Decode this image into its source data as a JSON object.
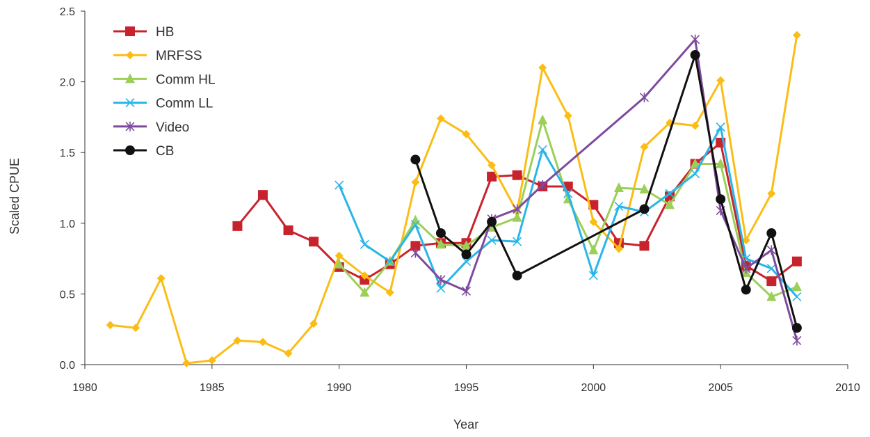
{
  "chart_data": {
    "type": "line",
    "title": "",
    "xlabel": "Year",
    "ylabel": "Scaled CPUE",
    "xlim": [
      1980,
      2010
    ],
    "ylim": [
      0,
      2.5
    ],
    "x_ticks": [
      "1980",
      "1985",
      "1990",
      "1995",
      "2000",
      "2005",
      "2010"
    ],
    "y_ticks": [
      "0.0",
      "0.5",
      "1.0",
      "1.5",
      "2.0",
      "2.5"
    ],
    "grid": false,
    "legend_position": "top-left",
    "series": [
      {
        "name": "HB",
        "color": "#c8232c",
        "marker": "square",
        "points": [
          [
            1986,
            0.98
          ],
          [
            1987,
            1.2
          ],
          [
            1988,
            0.95
          ],
          [
            1989,
            0.87
          ],
          [
            1990,
            0.69
          ],
          [
            1991,
            0.6
          ],
          [
            1992,
            0.71
          ],
          [
            1993,
            0.84
          ],
          [
            1994,
            0.86
          ],
          [
            1995,
            0.86
          ],
          [
            1996,
            1.33
          ],
          [
            1997,
            1.34
          ],
          [
            1998,
            1.26
          ],
          [
            1999,
            1.26
          ],
          [
            2000,
            1.13
          ],
          [
            2001,
            0.86
          ],
          [
            2002,
            0.84
          ],
          [
            2003,
            1.19
          ],
          [
            2004,
            1.42
          ],
          [
            2005,
            1.57
          ],
          [
            2006,
            0.7
          ],
          [
            2007,
            0.59
          ],
          [
            2008,
            0.73
          ]
        ]
      },
      {
        "name": "MRFSS",
        "color": "#fbbd15",
        "marker": "diamond",
        "points": [
          [
            1981,
            0.28
          ],
          [
            1982,
            0.26
          ],
          [
            1983,
            0.61
          ],
          [
            1984,
            0.01
          ],
          [
            1985,
            0.03
          ],
          [
            1986,
            0.17
          ],
          [
            1987,
            0.16
          ],
          [
            1988,
            0.08
          ],
          [
            1989,
            0.29
          ],
          [
            1990,
            0.77
          ],
          [
            1991,
            0.63
          ],
          [
            1992,
            0.51
          ],
          [
            1993,
            1.29
          ],
          [
            1994,
            1.74
          ],
          [
            1995,
            1.63
          ],
          [
            1996,
            1.41
          ],
          [
            1997,
            1.08
          ],
          [
            1998,
            2.1
          ],
          [
            1999,
            1.76
          ],
          [
            2000,
            1.01
          ],
          [
            2001,
            0.82
          ],
          [
            2002,
            1.54
          ],
          [
            2003,
            1.71
          ],
          [
            2004,
            1.69
          ],
          [
            2005,
            2.01
          ],
          [
            2006,
            0.88
          ],
          [
            2007,
            1.21
          ],
          [
            2008,
            2.33
          ]
        ]
      },
      {
        "name": "Comm HL",
        "color": "#9ccf57",
        "marker": "triangle",
        "points": [
          [
            1990,
            0.71
          ],
          [
            1991,
            0.51
          ],
          [
            1992,
            0.73
          ],
          [
            1993,
            1.02
          ],
          [
            1994,
            0.85
          ],
          [
            1995,
            0.84
          ],
          [
            1996,
            0.97
          ],
          [
            1997,
            1.04
          ],
          [
            1998,
            1.73
          ],
          [
            1999,
            1.17
          ],
          [
            2000,
            0.81
          ],
          [
            2001,
            1.25
          ],
          [
            2002,
            1.24
          ],
          [
            2003,
            1.13
          ],
          [
            2004,
            1.42
          ],
          [
            2005,
            1.42
          ],
          [
            2006,
            0.65
          ],
          [
            2007,
            0.48
          ],
          [
            2008,
            0.55
          ]
        ]
      },
      {
        "name": "Comm LL",
        "color": "#29b5e8",
        "marker": "x",
        "points": [
          [
            1990,
            1.27
          ],
          [
            1991,
            0.85
          ],
          [
            1992,
            0.73
          ],
          [
            1993,
            0.99
          ],
          [
            1994,
            0.54
          ],
          [
            1995,
            0.73
          ],
          [
            1996,
            0.88
          ],
          [
            1997,
            0.87
          ],
          [
            1998,
            1.52
          ],
          [
            1999,
            1.21
          ],
          [
            2000,
            0.63
          ],
          [
            2001,
            1.12
          ],
          [
            2002,
            1.08
          ],
          [
            2003,
            1.21
          ],
          [
            2004,
            1.35
          ],
          [
            2005,
            1.68
          ],
          [
            2006,
            0.75
          ],
          [
            2007,
            0.68
          ],
          [
            2008,
            0.48
          ]
        ]
      },
      {
        "name": "Video",
        "color": "#7e4a9e",
        "marker": "asterisk",
        "points": [
          [
            1993,
            0.79
          ],
          [
            1994,
            0.6
          ],
          [
            1995,
            0.52
          ],
          [
            1996,
            1.03
          ],
          [
            1997,
            1.1
          ],
          [
            1998,
            1.27
          ],
          [
            2002,
            1.89
          ],
          [
            2004,
            2.3
          ],
          [
            2005,
            1.09
          ],
          [
            2006,
            0.68
          ],
          [
            2007,
            0.81
          ],
          [
            2008,
            0.17
          ]
        ]
      },
      {
        "name": "CB",
        "color": "#111111",
        "marker": "circle",
        "points": [
          [
            1993,
            1.45
          ],
          [
            1994,
            0.93
          ],
          [
            1995,
            0.78
          ],
          [
            1996,
            1.01
          ],
          [
            1997,
            0.63
          ],
          [
            2002,
            1.1
          ],
          [
            2004,
            2.19
          ],
          [
            2005,
            1.17
          ],
          [
            2006,
            0.53
          ],
          [
            2007,
            0.93
          ],
          [
            2008,
            0.26
          ]
        ]
      }
    ]
  }
}
